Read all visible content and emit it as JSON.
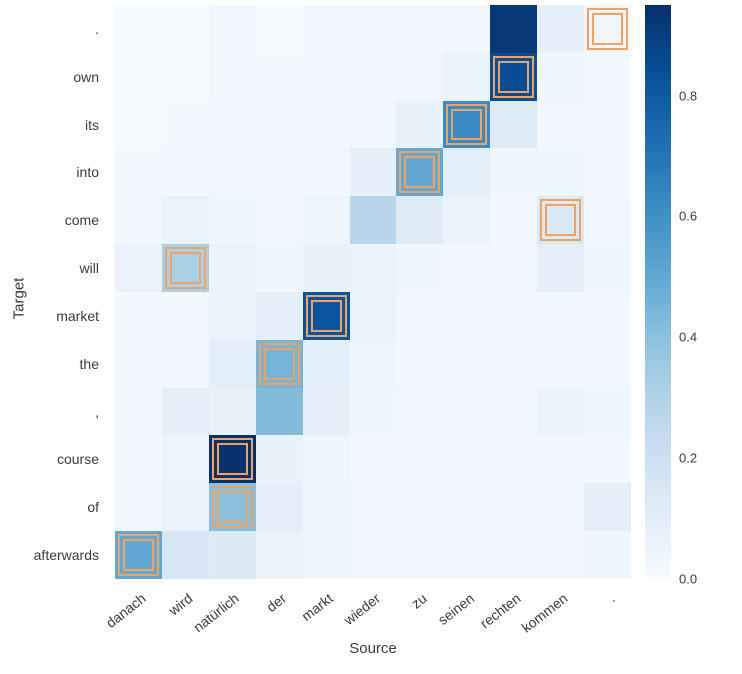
{
  "chart_data": {
    "type": "heatmap",
    "title": "",
    "xlabel": "Source",
    "ylabel": "Target",
    "x_categories": [
      "danach",
      "wird",
      "natürlich",
      "der",
      "markt",
      "wieder",
      "zu",
      "seinen",
      "rechten",
      "kommen",
      "."
    ],
    "y_categories": [
      ".",
      "own",
      "its",
      "into",
      "come",
      "will",
      "market",
      "the",
      ",",
      "course",
      "of",
      "afterwards"
    ],
    "values": [
      [
        0.01,
        0.01,
        0.02,
        0.01,
        0.02,
        0.02,
        0.02,
        0.03,
        0.92,
        0.08,
        0.03
      ],
      [
        0.01,
        0.01,
        0.02,
        0.02,
        0.02,
        0.02,
        0.03,
        0.06,
        0.85,
        0.04,
        0.02
      ],
      [
        0.01,
        0.02,
        0.02,
        0.02,
        0.02,
        0.03,
        0.07,
        0.62,
        0.12,
        0.03,
        0.02
      ],
      [
        0.02,
        0.02,
        0.03,
        0.02,
        0.03,
        0.08,
        0.5,
        0.1,
        0.04,
        0.04,
        0.02
      ],
      [
        0.03,
        0.06,
        0.04,
        0.03,
        0.05,
        0.28,
        0.12,
        0.06,
        0.03,
        0.14,
        0.03
      ],
      [
        0.06,
        0.32,
        0.06,
        0.04,
        0.07,
        0.06,
        0.04,
        0.03,
        0.02,
        0.09,
        0.04
      ],
      [
        0.02,
        0.03,
        0.06,
        0.09,
        0.82,
        0.06,
        0.03,
        0.02,
        0.02,
        0.02,
        0.02
      ],
      [
        0.02,
        0.03,
        0.1,
        0.45,
        0.1,
        0.05,
        0.03,
        0.02,
        0.02,
        0.03,
        0.02
      ],
      [
        0.03,
        0.09,
        0.07,
        0.42,
        0.08,
        0.04,
        0.03,
        0.02,
        0.02,
        0.06,
        0.04
      ],
      [
        0.02,
        0.05,
        0.95,
        0.07,
        0.04,
        0.02,
        0.02,
        0.02,
        0.02,
        0.02,
        0.02
      ],
      [
        0.03,
        0.06,
        0.4,
        0.09,
        0.04,
        0.03,
        0.02,
        0.02,
        0.02,
        0.02,
        0.09
      ],
      [
        0.5,
        0.15,
        0.13,
        0.06,
        0.04,
        0.03,
        0.02,
        0.02,
        0.02,
        0.02,
        0.04
      ]
    ],
    "highlight_cells": [
      {
        "row": 0,
        "col": 10
      },
      {
        "row": 1,
        "col": 8
      },
      {
        "row": 2,
        "col": 7
      },
      {
        "row": 3,
        "col": 6
      },
      {
        "row": 4,
        "col": 9
      },
      {
        "row": 5,
        "col": 1
      },
      {
        "row": 6,
        "col": 4
      },
      {
        "row": 7,
        "col": 3
      },
      {
        "row": 9,
        "col": 2
      },
      {
        "row": 10,
        "col": 2
      },
      {
        "row": 11,
        "col": 0
      }
    ],
    "highlight_color": "#f0a263",
    "colormap": "Blues",
    "colorbar": {
      "vmin": 0.0,
      "vmax": 0.95,
      "ticks": [
        "0.0",
        "0.2",
        "0.4",
        "0.6",
        "0.8"
      ],
      "position": "right"
    },
    "grid": false,
    "legend": false
  }
}
